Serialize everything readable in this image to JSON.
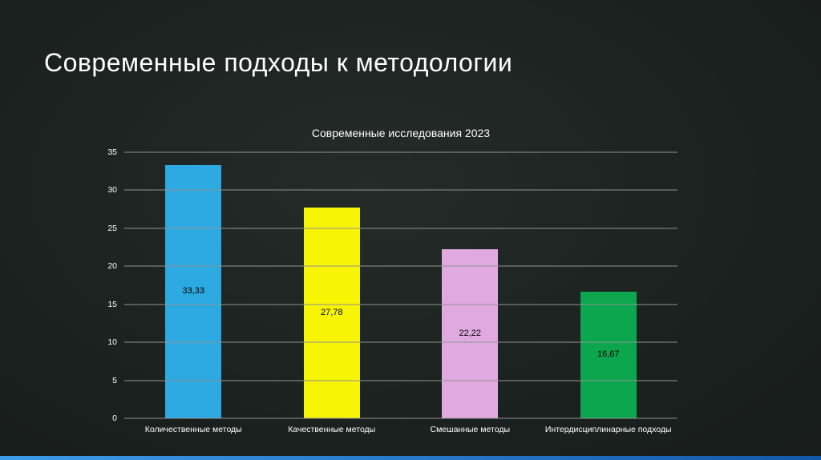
{
  "slide": {
    "title": "Современные подходы к методологии"
  },
  "chart_data": {
    "type": "bar",
    "title": "Современные исследования 2023",
    "categories": [
      "Количественные методы",
      "Качественные методы",
      "Смешанные методы",
      "Интердисциплинарные подходы"
    ],
    "values": [
      33.33,
      27.78,
      22.22,
      16.67
    ],
    "value_labels": [
      "33,33",
      "27,78",
      "22,22",
      "16,67"
    ],
    "bar_colors": [
      "#2ca9e1",
      "#f7f406",
      "#e0a9e0",
      "#0ca64f"
    ],
    "value_label_color": "#000000",
    "xlabel": "",
    "ylabel": "",
    "ylim": [
      0,
      35
    ],
    "yticks": [
      0,
      5,
      10,
      15,
      20,
      25,
      30,
      35
    ],
    "grid": true,
    "gridline_color": "#8f9492",
    "legend_position": "none"
  },
  "footer": {
    "accent_gradient_start": "#3d9be9",
    "accent_gradient_end": "#1258a8"
  }
}
